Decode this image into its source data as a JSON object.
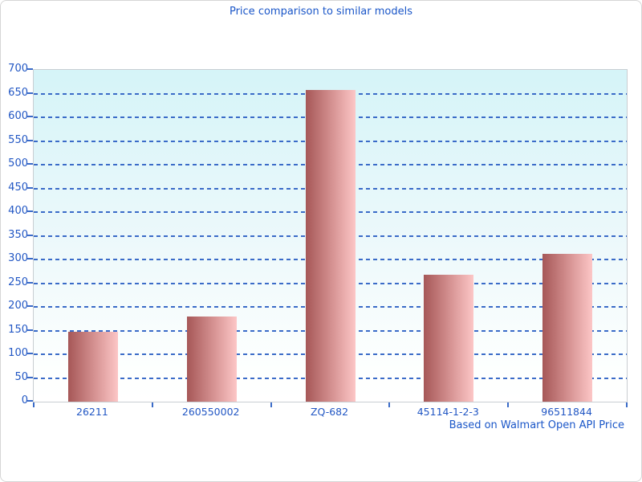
{
  "chart_data": {
    "type": "bar",
    "title": "Price comparison to similar models",
    "categories": [
      "26211",
      "260550002",
      "ZQ-682",
      "45114-1-2-3",
      "96511844"
    ],
    "values": [
      148,
      180,
      658,
      268,
      312
    ],
    "xlabel": "",
    "ylabel": "",
    "ylim": [
      0,
      700
    ],
    "ytick_step": 50,
    "grid": "horizontal-dashed",
    "legend": "none",
    "footnote": "Based on Walmart Open API Price",
    "colors": {
      "title_text": "#1a56c8",
      "axis_label_text": "#2257c4",
      "gridline": "#3a6bc8",
      "bar_gradient_left": "#a65757",
      "bar_gradient_right": "#fcc6c6",
      "plot_bg_top": "#d5f4f8",
      "plot_bg_bottom": "#ffffff",
      "plot_border": "#c9ced2",
      "card_border": "#d6d6d6"
    }
  }
}
